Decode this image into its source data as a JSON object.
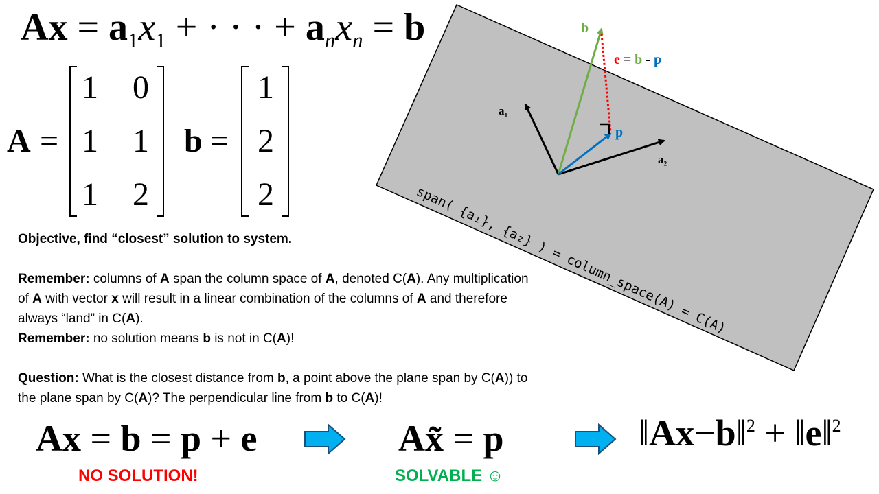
{
  "top_equation": {
    "lhs": "Ax",
    "eq1": "=",
    "a1": "a",
    "sub1": "1",
    "x1": "x",
    "xsub1": "1",
    "plus1": "+",
    "dots": "· · ·",
    "plus2": "+",
    "an": "a",
    "subn": "n",
    "xn": "x",
    "xsubn": "n",
    "eq2": "=",
    "rhs": "b"
  },
  "matrices": {
    "A_label": "A",
    "A_eq": "=",
    "A_cells": [
      "1",
      "0",
      "1",
      "1",
      "1",
      "2"
    ],
    "b_label": "b",
    "b_eq": "=",
    "b_cells": [
      "1",
      "2",
      "2"
    ]
  },
  "text": {
    "objective": "Objective, find “closest” solution to system.",
    "remember1_label": "Remember:",
    "remember1_parts": [
      " columns of ",
      "A",
      " span the column space of ",
      "A",
      ", denoted C(",
      "A",
      "). Any multiplication of ",
      "A",
      " with vector ",
      "x",
      " will result in a linear combination of the columns of ",
      "A",
      " and therefore always “land” in C(",
      "A",
      ")."
    ],
    "remember2_label": "Remember:",
    "remember2_parts": [
      " no solution means ",
      "b",
      " is not in C(",
      "A",
      ")!"
    ],
    "question_label": "Question:",
    "question_parts": [
      " What is the closest distance from ",
      "b",
      ", a point above the plane span by C(",
      "A",
      ")) to the plane span by C(",
      "A",
      ")? The perpendicular line from ",
      "b",
      " to C(",
      "A",
      ")!"
    ]
  },
  "diagram": {
    "b_label": "b",
    "e_label": "e",
    "e_eq": "=",
    "e_b": "b",
    "e_minus": "-",
    "e_p": "p",
    "p_label": "p",
    "a1_label": "a",
    "a1_sub": "1",
    "a2_label": "a",
    "a2_sub": "2",
    "span_text": "span( {a₁}, {a₂} ) = column_space(A) = C(A)",
    "colors": {
      "plane": "#c0c0c0",
      "b_vec": "#70ad47",
      "p_vec": "#0070c0",
      "e_vec": "#ff0000",
      "a_vec": "#000000"
    }
  },
  "bottom": {
    "eq1_lhs": "Ax",
    "eq1_eq1": "=",
    "eq1_b": "b",
    "eq1_eq2": "=",
    "eq1_p": "p",
    "eq1_plus": "+",
    "eq1_e": "e",
    "no_solution": "NO SOLUTION!",
    "eq2_A": "A",
    "eq2_x": "x̃",
    "eq2_eq": "=",
    "eq2_p": "p",
    "solvable": "SOLVABLE ☺",
    "eq3_Ax": "Ax",
    "eq3_minus": "−",
    "eq3_b": "b",
    "eq3_sq1": "2",
    "eq3_plus": "+",
    "eq3_e": "e",
    "eq3_sq2": "2",
    "arrow_color": "#00b0f0"
  }
}
